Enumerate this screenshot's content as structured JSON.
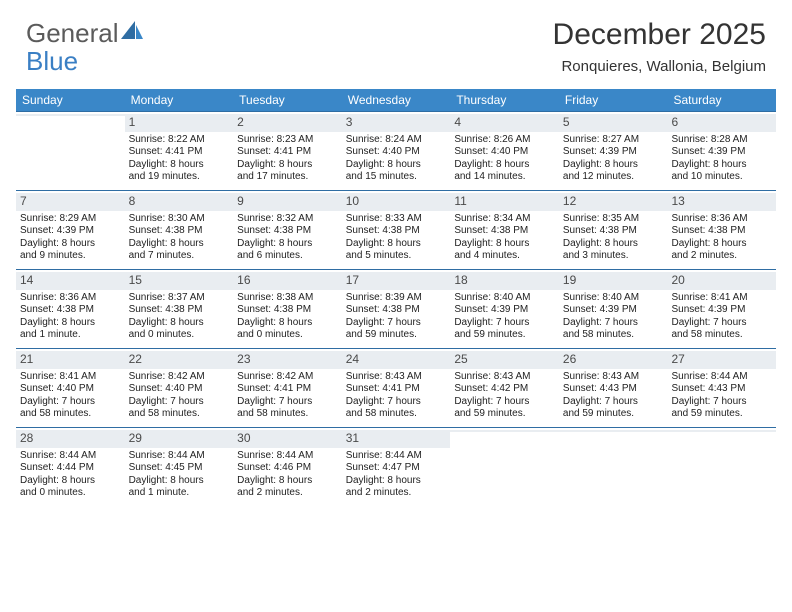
{
  "logo": {
    "part1": "General",
    "part2": "Blue"
  },
  "title": "December 2025",
  "location": "Ronquieres, Wallonia, Belgium",
  "colors": {
    "header_bg": "#3a87c8",
    "daynum_bg": "#e9edf1",
    "divider": "#2f6da3",
    "logo_gray": "#5b5b5b",
    "logo_blue": "#3a7fc4"
  },
  "day_headers": [
    "Sunday",
    "Monday",
    "Tuesday",
    "Wednesday",
    "Thursday",
    "Friday",
    "Saturday"
  ],
  "weeks": [
    [
      {
        "n": "",
        "l": [
          "",
          "",
          "",
          ""
        ]
      },
      {
        "n": "1",
        "l": [
          "Sunrise: 8:22 AM",
          "Sunset: 4:41 PM",
          "Daylight: 8 hours",
          "and 19 minutes."
        ]
      },
      {
        "n": "2",
        "l": [
          "Sunrise: 8:23 AM",
          "Sunset: 4:41 PM",
          "Daylight: 8 hours",
          "and 17 minutes."
        ]
      },
      {
        "n": "3",
        "l": [
          "Sunrise: 8:24 AM",
          "Sunset: 4:40 PM",
          "Daylight: 8 hours",
          "and 15 minutes."
        ]
      },
      {
        "n": "4",
        "l": [
          "Sunrise: 8:26 AM",
          "Sunset: 4:40 PM",
          "Daylight: 8 hours",
          "and 14 minutes."
        ]
      },
      {
        "n": "5",
        "l": [
          "Sunrise: 8:27 AM",
          "Sunset: 4:39 PM",
          "Daylight: 8 hours",
          "and 12 minutes."
        ]
      },
      {
        "n": "6",
        "l": [
          "Sunrise: 8:28 AM",
          "Sunset: 4:39 PM",
          "Daylight: 8 hours",
          "and 10 minutes."
        ]
      }
    ],
    [
      {
        "n": "7",
        "l": [
          "Sunrise: 8:29 AM",
          "Sunset: 4:39 PM",
          "Daylight: 8 hours",
          "and 9 minutes."
        ]
      },
      {
        "n": "8",
        "l": [
          "Sunrise: 8:30 AM",
          "Sunset: 4:38 PM",
          "Daylight: 8 hours",
          "and 7 minutes."
        ]
      },
      {
        "n": "9",
        "l": [
          "Sunrise: 8:32 AM",
          "Sunset: 4:38 PM",
          "Daylight: 8 hours",
          "and 6 minutes."
        ]
      },
      {
        "n": "10",
        "l": [
          "Sunrise: 8:33 AM",
          "Sunset: 4:38 PM",
          "Daylight: 8 hours",
          "and 5 minutes."
        ]
      },
      {
        "n": "11",
        "l": [
          "Sunrise: 8:34 AM",
          "Sunset: 4:38 PM",
          "Daylight: 8 hours",
          "and 4 minutes."
        ]
      },
      {
        "n": "12",
        "l": [
          "Sunrise: 8:35 AM",
          "Sunset: 4:38 PM",
          "Daylight: 8 hours",
          "and 3 minutes."
        ]
      },
      {
        "n": "13",
        "l": [
          "Sunrise: 8:36 AM",
          "Sunset: 4:38 PM",
          "Daylight: 8 hours",
          "and 2 minutes."
        ]
      }
    ],
    [
      {
        "n": "14",
        "l": [
          "Sunrise: 8:36 AM",
          "Sunset: 4:38 PM",
          "Daylight: 8 hours",
          "and 1 minute."
        ]
      },
      {
        "n": "15",
        "l": [
          "Sunrise: 8:37 AM",
          "Sunset: 4:38 PM",
          "Daylight: 8 hours",
          "and 0 minutes."
        ]
      },
      {
        "n": "16",
        "l": [
          "Sunrise: 8:38 AM",
          "Sunset: 4:38 PM",
          "Daylight: 8 hours",
          "and 0 minutes."
        ]
      },
      {
        "n": "17",
        "l": [
          "Sunrise: 8:39 AM",
          "Sunset: 4:38 PM",
          "Daylight: 7 hours",
          "and 59 minutes."
        ]
      },
      {
        "n": "18",
        "l": [
          "Sunrise: 8:40 AM",
          "Sunset: 4:39 PM",
          "Daylight: 7 hours",
          "and 59 minutes."
        ]
      },
      {
        "n": "19",
        "l": [
          "Sunrise: 8:40 AM",
          "Sunset: 4:39 PM",
          "Daylight: 7 hours",
          "and 58 minutes."
        ]
      },
      {
        "n": "20",
        "l": [
          "Sunrise: 8:41 AM",
          "Sunset: 4:39 PM",
          "Daylight: 7 hours",
          "and 58 minutes."
        ]
      }
    ],
    [
      {
        "n": "21",
        "l": [
          "Sunrise: 8:41 AM",
          "Sunset: 4:40 PM",
          "Daylight: 7 hours",
          "and 58 minutes."
        ]
      },
      {
        "n": "22",
        "l": [
          "Sunrise: 8:42 AM",
          "Sunset: 4:40 PM",
          "Daylight: 7 hours",
          "and 58 minutes."
        ]
      },
      {
        "n": "23",
        "l": [
          "Sunrise: 8:42 AM",
          "Sunset: 4:41 PM",
          "Daylight: 7 hours",
          "and 58 minutes."
        ]
      },
      {
        "n": "24",
        "l": [
          "Sunrise: 8:43 AM",
          "Sunset: 4:41 PM",
          "Daylight: 7 hours",
          "and 58 minutes."
        ]
      },
      {
        "n": "25",
        "l": [
          "Sunrise: 8:43 AM",
          "Sunset: 4:42 PM",
          "Daylight: 7 hours",
          "and 59 minutes."
        ]
      },
      {
        "n": "26",
        "l": [
          "Sunrise: 8:43 AM",
          "Sunset: 4:43 PM",
          "Daylight: 7 hours",
          "and 59 minutes."
        ]
      },
      {
        "n": "27",
        "l": [
          "Sunrise: 8:44 AM",
          "Sunset: 4:43 PM",
          "Daylight: 7 hours",
          "and 59 minutes."
        ]
      }
    ],
    [
      {
        "n": "28",
        "l": [
          "Sunrise: 8:44 AM",
          "Sunset: 4:44 PM",
          "Daylight: 8 hours",
          "and 0 minutes."
        ]
      },
      {
        "n": "29",
        "l": [
          "Sunrise: 8:44 AM",
          "Sunset: 4:45 PM",
          "Daylight: 8 hours",
          "and 1 minute."
        ]
      },
      {
        "n": "30",
        "l": [
          "Sunrise: 8:44 AM",
          "Sunset: 4:46 PM",
          "Daylight: 8 hours",
          "and 2 minutes."
        ]
      },
      {
        "n": "31",
        "l": [
          "Sunrise: 8:44 AM",
          "Sunset: 4:47 PM",
          "Daylight: 8 hours",
          "and 2 minutes."
        ]
      },
      {
        "n": "",
        "l": [
          "",
          "",
          "",
          ""
        ]
      },
      {
        "n": "",
        "l": [
          "",
          "",
          "",
          ""
        ]
      },
      {
        "n": "",
        "l": [
          "",
          "",
          "",
          ""
        ]
      }
    ]
  ]
}
